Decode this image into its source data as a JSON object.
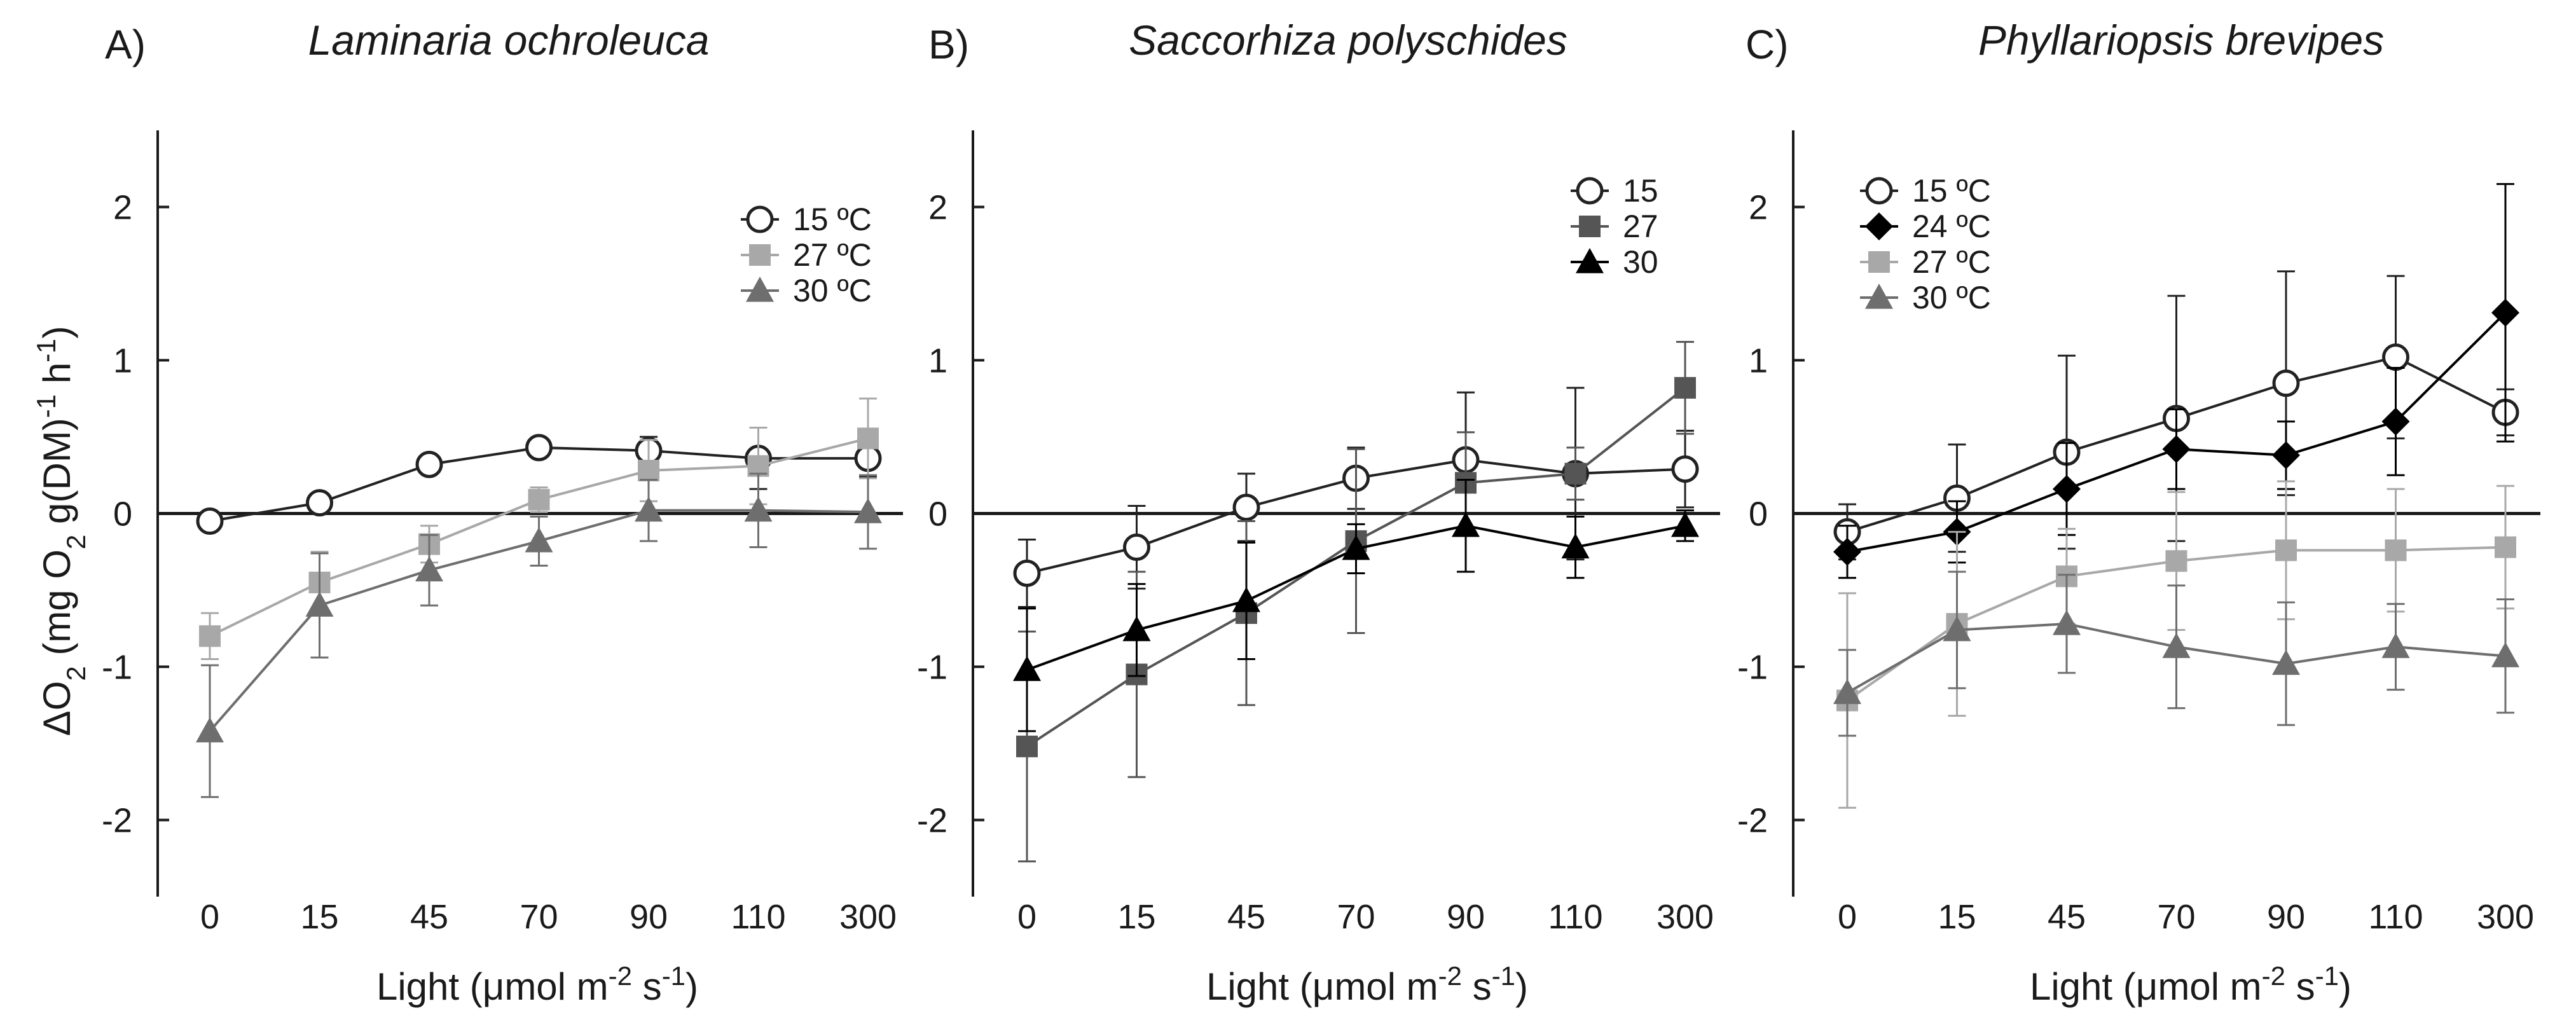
{
  "figure": {
    "ylabel": "ΔO",
    "ylabel_sub": "2",
    "ylabel_rest_a": " (mg O",
    "ylabel_rest_b": " g(DM)",
    "ylabel_sup": "-1",
    "ylabel_rest_c": " h",
    "ylabel_sup2": "-1",
    "ylabel_rest_d": ")",
    "xlabel_a": "Light (",
    "xlabel_mu": "μ",
    "xlabel_b": "mol m",
    "xlabel_sup1": "-2",
    "xlabel_c": " s",
    "xlabel_sup2": "-1",
    "xlabel_d": ")"
  },
  "colors": {
    "c15": "#222222",
    "c24": "#000000",
    "c27": "#a8a8a8",
    "c27_dark": "#555555",
    "c30": "#6e6e6e",
    "c30_dark": "#000000",
    "axis": "#1a1a1a"
  },
  "chart_data": [
    {
      "type": "line",
      "panel_label": "A)",
      "title": "Laminaria ochroleuca",
      "categories": [
        "0",
        "15",
        "45",
        "70",
        "90",
        "110",
        "300"
      ],
      "ylim": [
        -2.5,
        2.5
      ],
      "yticks": [
        -2,
        -1,
        0,
        1,
        2
      ],
      "legend_position": "top-right",
      "series": [
        {
          "name": "15 ºC",
          "marker": "circle-open",
          "color_key": "c15",
          "values": [
            -0.05,
            0.07,
            0.32,
            0.43,
            0.41,
            0.36,
            0.36
          ],
          "errors": [
            0.02,
            0.03,
            0.04,
            0.04,
            0.09,
            0.2,
            0.12
          ]
        },
        {
          "name": "27 ºC",
          "marker": "square",
          "color_key": "c27",
          "values": [
            -0.8,
            -0.45,
            -0.2,
            0.09,
            0.28,
            0.31,
            0.49
          ],
          "errors": [
            0.15,
            0.2,
            0.12,
            0.08,
            0.2,
            0.25,
            0.26
          ]
        },
        {
          "name": "30 ºC",
          "marker": "triangle",
          "color_key": "c30",
          "values": [
            -1.42,
            -0.6,
            -0.37,
            -0.18,
            0.02,
            0.02,
            0.01
          ],
          "errors": [
            0.43,
            0.34,
            0.23,
            0.16,
            0.2,
            0.24,
            0.24
          ]
        }
      ]
    },
    {
      "type": "line",
      "panel_label": "B)",
      "title": "Saccorhiza polyschides",
      "categories": [
        "0",
        "15",
        "45",
        "70",
        "90",
        "110",
        "300"
      ],
      "ylim": [
        -2.5,
        2.5
      ],
      "yticks": [
        -2,
        -1,
        0,
        1,
        2
      ],
      "legend_position": "top-right",
      "series": [
        {
          "name": "15",
          "marker": "circle-open",
          "color_key": "c15",
          "values": [
            -0.39,
            -0.22,
            0.04,
            0.23,
            0.35,
            0.26,
            0.29
          ],
          "errors": [
            0.22,
            0.27,
            0.22,
            0.2,
            0.44,
            0.56,
            0.25
          ]
        },
        {
          "name": "27",
          "marker": "square",
          "color_key": "c27_dark",
          "values": [
            -1.52,
            -1.05,
            -0.65,
            -0.18,
            0.2,
            0.26,
            0.82
          ],
          "errors": [
            0.75,
            0.67,
            0.6,
            0.6,
            0.33,
            0.17,
            0.3
          ]
        },
        {
          "name": "30",
          "marker": "triangle",
          "color_key": "c30_dark",
          "values": [
            -1.02,
            -0.76,
            -0.57,
            -0.23,
            -0.08,
            -0.22,
            -0.08
          ],
          "errors": [
            0.4,
            0.3,
            0.38,
            0.16,
            0.3,
            0.2,
            0.1
          ]
        }
      ]
    },
    {
      "type": "line",
      "panel_label": "C)",
      "title": "Phyllariopsis brevipes",
      "categories": [
        "0",
        "15",
        "45",
        "70",
        "90",
        "110",
        "300"
      ],
      "ylim": [
        -2.5,
        2.5
      ],
      "yticks": [
        -2,
        -1,
        0,
        1,
        2
      ],
      "legend_position": "top-left",
      "series": [
        {
          "name": "15 ºC",
          "marker": "circle-open",
          "color_key": "c15",
          "values": [
            -0.12,
            0.1,
            0.4,
            0.62,
            0.85,
            1.02,
            0.66
          ],
          "errors": [
            0.18,
            0.35,
            0.63,
            0.8,
            0.73,
            0.53,
            0.15
          ]
        },
        {
          "name": "24 ºC",
          "marker": "diamond",
          "color_key": "c24",
          "values": [
            -0.25,
            -0.12,
            0.16,
            0.42,
            0.38,
            0.6,
            1.31
          ],
          "errors": [
            0.17,
            0.2,
            0.3,
            0.26,
            0.22,
            0.35,
            0.84
          ]
        },
        {
          "name": "27 ºC",
          "marker": "square",
          "color_key": "c27",
          "values": [
            -1.22,
            -0.72,
            -0.41,
            -0.31,
            -0.24,
            -0.24,
            -0.22
          ],
          "errors": [
            0.7,
            0.6,
            0.31,
            0.45,
            0.45,
            0.4,
            0.4
          ]
        },
        {
          "name": "30 ºC",
          "marker": "triangle",
          "color_key": "c30",
          "values": [
            -1.17,
            -0.76,
            -0.72,
            -0.87,
            -0.98,
            -0.87,
            -0.93
          ],
          "errors": [
            0.28,
            0.38,
            0.32,
            0.4,
            0.4,
            0.28,
            0.37
          ]
        }
      ]
    }
  ]
}
